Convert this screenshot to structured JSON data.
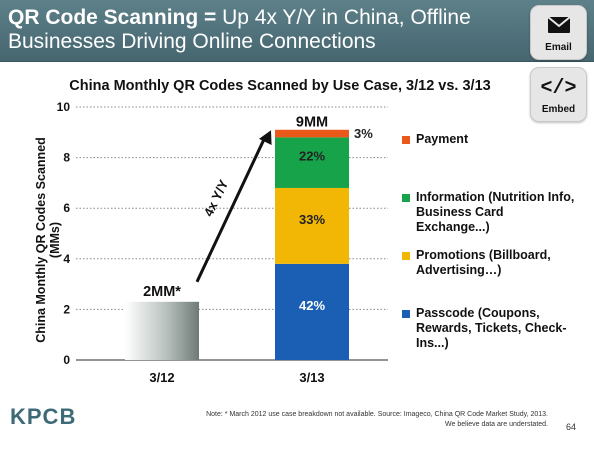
{
  "header": {
    "title_bold": "QR Code Scanning =",
    "title_rest": " Up 4x Y/Y in China, Offline Businesses Driving Online Connections"
  },
  "share": {
    "email_label": "Email",
    "embed_label": "Embed",
    "embed_symbol": "</>",
    "email_icon": "envelope-icon",
    "embed_icon": "code-icon"
  },
  "chart_data": {
    "type": "bar",
    "stacked": true,
    "title": "China Monthly QR Codes Scanned by Use Case, 3/12 vs. 3/13",
    "ylabel": "China Monthly QR Codes Scanned (MMs)",
    "xlabel": "",
    "ylim": [
      0,
      10
    ],
    "yticks": [
      0,
      2,
      4,
      6,
      8,
      10
    ],
    "grid": "dotted horizontal",
    "legend_position": "right",
    "categories": [
      "3/12",
      "3/13"
    ],
    "totals": [
      {
        "category": "3/12",
        "value": 2.3,
        "label": "2MM*"
      },
      {
        "category": "3/13",
        "value": 9.0,
        "label": "9MM"
      }
    ],
    "first_bar": {
      "category": "3/12",
      "value": 2.3,
      "color": "#b3bcb8"
    },
    "series": [
      {
        "name": "Passcode (Coupons, Rewards, Tickets, Check-Ins...)",
        "category": "3/13",
        "value": 3.8,
        "label": "42%",
        "color": "#1a5fb4"
      },
      {
        "name": "Promotions (Billboard, Advertising…)",
        "category": "3/13",
        "value": 3.0,
        "label": "33%",
        "color": "#f2b705"
      },
      {
        "name": "Information (Nutrition Info, Business Card Exchange...)",
        "category": "3/13",
        "value": 2.0,
        "label": "22%",
        "color": "#16a34a"
      },
      {
        "name": "Payment",
        "category": "3/13",
        "value": 0.3,
        "label": "3%",
        "color": "#e8591a"
      }
    ],
    "annotation": "4x Y/Y"
  },
  "legend": [
    {
      "label": "Payment",
      "color": "#e8591a"
    },
    {
      "label": "Information (Nutrition Info, Business Card Exchange...)",
      "color": "#16a34a"
    },
    {
      "label": "Promotions (Billboard, Advertising…)",
      "color": "#f2b705"
    },
    {
      "label": "Passcode (Coupons, Rewards, Tickets, Check-Ins...)",
      "color": "#1a5fb4"
    }
  ],
  "footer": {
    "logo": "KPCB",
    "note_line1": "Note: * March 2012 use case breakdown not available. Source: Imageco, China QR Code Market Study, 2013.",
    "note_line2": "We believe data are understated.",
    "page": "64"
  }
}
